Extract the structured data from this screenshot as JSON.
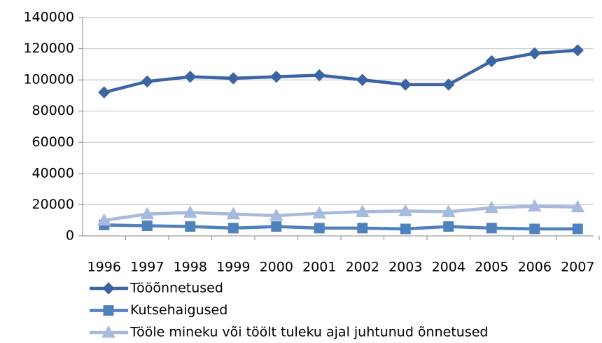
{
  "chart_data": {
    "type": "line",
    "categories": [
      "1996",
      "1997",
      "1998",
      "1999",
      "2000",
      "2001",
      "2002",
      "2003",
      "2004",
      "2005",
      "2006",
      "2007"
    ],
    "series": [
      {
        "name": "Tööõnnetused",
        "color": "#3b64a3",
        "marker": "diamond",
        "values": [
          92000,
          99000,
          102000,
          101000,
          102000,
          103000,
          100000,
          97000,
          97000,
          112000,
          117000,
          119000
        ]
      },
      {
        "name": "Kutsehaigused",
        "color": "#4f81bd",
        "marker": "square",
        "values": [
          7000,
          6500,
          6000,
          5000,
          6000,
          5000,
          5000,
          4500,
          6000,
          5000,
          4500,
          4500
        ]
      },
      {
        "name": "Tööle mineku või töölt tuleku ajal juhtunud õnnetused",
        "color": "#a7b9dd",
        "marker": "triangle",
        "values": [
          10000,
          14000,
          15000,
          14000,
          13000,
          14500,
          15500,
          16000,
          15500,
          18000,
          19000,
          18500
        ]
      }
    ],
    "ylim": [
      0,
      140000
    ],
    "yticks": [
      0,
      20000,
      40000,
      60000,
      80000,
      100000,
      120000,
      140000
    ],
    "grid": true
  }
}
